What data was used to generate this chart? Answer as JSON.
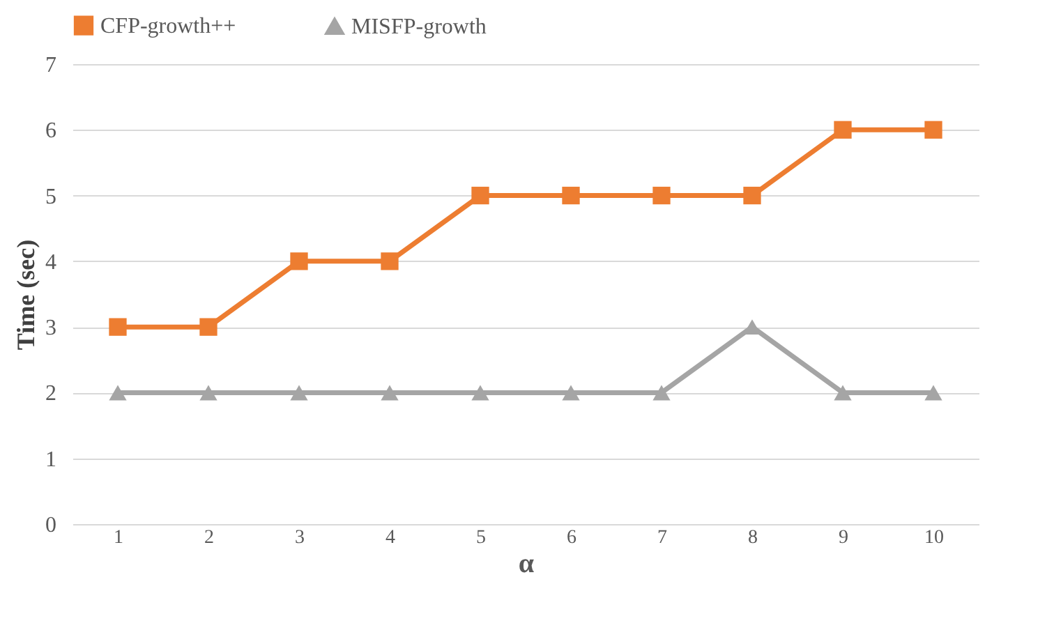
{
  "chart_data": {
    "type": "line",
    "xlabel": "α",
    "ylabel": "Time (sec)",
    "categories": [
      "1",
      "2",
      "3",
      "4",
      "5",
      "6",
      "7",
      "8",
      "9",
      "10"
    ],
    "series": [
      {
        "name": "CFP-growth++",
        "color": "#ed7d31",
        "marker": "square",
        "values": [
          3,
          3,
          4,
          4,
          5,
          5,
          5,
          5,
          6,
          6
        ]
      },
      {
        "name": "MISFP-growth",
        "color": "#a5a5a5",
        "marker": "triangle",
        "values": [
          2,
          2,
          2,
          2,
          2,
          2,
          2,
          3,
          2,
          2
        ]
      }
    ],
    "ylim": [
      0,
      7
    ],
    "yticks": [
      0,
      1,
      2,
      3,
      4,
      5,
      6,
      7
    ],
    "grid": "y",
    "legend": "top"
  }
}
